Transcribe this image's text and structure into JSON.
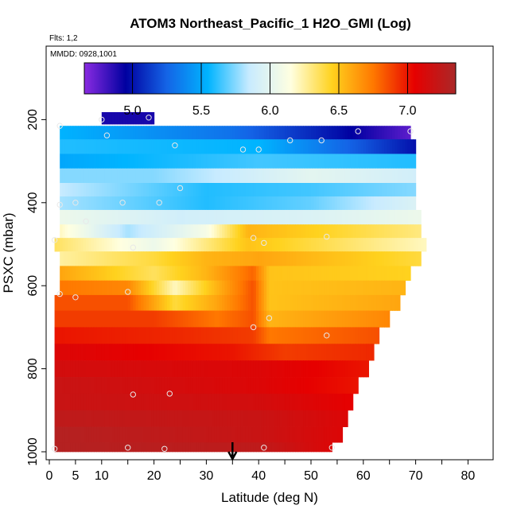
{
  "chart_data": {
    "type": "heatmap",
    "title": "ATOM3 Northeast_Pacific_1 H2O_GMI (Log)",
    "flights_note": "Flts: 1,2",
    "date_note": "MMDD: 0928,1001",
    "xlabel": "Latitude (deg N)",
    "ylabel": "PSXC (mbar)",
    "xlim": [
      0,
      85
    ],
    "ylim": [
      1000,
      0
    ],
    "x_ticks": [
      0,
      5,
      10,
      20,
      30,
      40,
      50,
      60,
      70,
      80
    ],
    "x_minor_ticks": [
      15,
      25,
      35,
      45,
      55,
      65,
      75,
      85
    ],
    "y_ticks": [
      200,
      400,
      600,
      800,
      1000
    ],
    "colorbar": {
      "range": [
        4.65,
        7.35
      ],
      "ticks": [
        5.0,
        5.5,
        6.0,
        6.5,
        7.0
      ],
      "tick_labels": [
        "5.0",
        "5.5",
        "6.0",
        "6.5",
        "7.0"
      ],
      "colors": [
        "#8a2be2",
        "#0000a0",
        "#1464e6",
        "#00b4ff",
        "#c8ebff",
        "#ffffe0",
        "#ffd21e",
        "#ff7800",
        "#e60000",
        "#aa2828"
      ]
    },
    "profiles": [
      {
        "p": 200,
        "x0": 10,
        "x1": 20,
        "kind": "flat",
        "v": 4.9
      },
      {
        "p": 230,
        "x0": 2,
        "x1": 69,
        "kind": "piecewise",
        "pts": [
          [
            2,
            5.55
          ],
          [
            35,
            5.3
          ],
          [
            55,
            5.0
          ],
          [
            69,
            4.75
          ]
        ]
      },
      {
        "p": 265,
        "x0": 2,
        "x1": 70,
        "kind": "piecewise",
        "pts": [
          [
            2,
            5.6
          ],
          [
            40,
            5.55
          ],
          [
            60,
            5.2
          ],
          [
            70,
            5.0
          ]
        ]
      },
      {
        "p": 300,
        "x0": 2,
        "x1": 70,
        "kind": "piecewise",
        "pts": [
          [
            2,
            5.5
          ],
          [
            40,
            5.65
          ],
          [
            70,
            5.6
          ]
        ]
      },
      {
        "p": 335,
        "x0": 2,
        "x1": 70,
        "kind": "piecewise",
        "pts": [
          [
            2,
            5.75
          ],
          [
            20,
            5.75
          ],
          [
            50,
            6.0
          ],
          [
            70,
            5.9
          ]
        ]
      },
      {
        "p": 370,
        "x0": 2,
        "x1": 70,
        "kind": "piecewise",
        "pts": [
          [
            2,
            5.85
          ],
          [
            30,
            5.6
          ],
          [
            50,
            5.65
          ],
          [
            70,
            5.75
          ]
        ]
      },
      {
        "p": 400,
        "x0": 2,
        "x1": 70,
        "kind": "piecewise",
        "pts": [
          [
            2,
            5.8
          ],
          [
            30,
            5.6
          ],
          [
            50,
            5.7
          ],
          [
            70,
            5.95
          ]
        ]
      },
      {
        "p": 435,
        "x0": 2,
        "x1": 71,
        "kind": "piecewise",
        "pts": [
          [
            2,
            6.05
          ],
          [
            25,
            5.9
          ],
          [
            50,
            5.95
          ],
          [
            71,
            6.05
          ]
        ]
      },
      {
        "p": 470,
        "x0": 2,
        "x1": 71,
        "kind": "piecewise",
        "pts": [
          [
            2,
            6.2
          ],
          [
            15,
            5.8
          ],
          [
            30,
            6.1
          ],
          [
            38,
            6.55
          ],
          [
            71,
            6.3
          ]
        ]
      },
      {
        "p": 500,
        "x0": 1,
        "x1": 72,
        "kind": "piecewise",
        "pts": [
          [
            1,
            6.35
          ],
          [
            20,
            6.05
          ],
          [
            30,
            6.3
          ],
          [
            38,
            6.5
          ],
          [
            72,
            6.2
          ]
        ]
      },
      {
        "p": 535,
        "x0": 2,
        "x1": 71,
        "kind": "piecewise",
        "pts": [
          [
            2,
            6.25
          ],
          [
            20,
            6.4
          ],
          [
            30,
            6.55
          ],
          [
            40,
            6.6
          ],
          [
            71,
            6.4
          ]
        ]
      },
      {
        "p": 570,
        "x0": 2,
        "x1": 69,
        "kind": "piecewise",
        "pts": [
          [
            2,
            6.6
          ],
          [
            20,
            6.35
          ],
          [
            30,
            6.55
          ],
          [
            39,
            6.8
          ],
          [
            42,
            6.5
          ],
          [
            69,
            6.45
          ]
        ]
      },
      {
        "p": 605,
        "x0": 2,
        "x1": 68,
        "kind": "piecewise",
        "pts": [
          [
            2,
            6.75
          ],
          [
            15,
            6.7
          ],
          [
            24,
            6.2
          ],
          [
            32,
            6.55
          ],
          [
            39,
            6.85
          ],
          [
            42,
            6.5
          ],
          [
            68,
            6.55
          ]
        ]
      },
      {
        "p": 640,
        "x0": 1,
        "x1": 67,
        "kind": "piecewise",
        "pts": [
          [
            1,
            6.85
          ],
          [
            15,
            6.85
          ],
          [
            24,
            6.4
          ],
          [
            32,
            6.6
          ],
          [
            39,
            6.85
          ],
          [
            42,
            6.5
          ],
          [
            67,
            6.6
          ]
        ]
      },
      {
        "p": 680,
        "x0": 1,
        "x1": 65,
        "kind": "piecewise",
        "pts": [
          [
            1,
            6.9
          ],
          [
            20,
            6.9
          ],
          [
            32,
            6.75
          ],
          [
            39,
            6.85
          ],
          [
            42,
            6.55
          ],
          [
            65,
            6.7
          ]
        ]
      },
      {
        "p": 720,
        "x0": 1,
        "x1": 63,
        "kind": "piecewise",
        "pts": [
          [
            1,
            7.0
          ],
          [
            25,
            6.95
          ],
          [
            39,
            6.9
          ],
          [
            42,
            6.75
          ],
          [
            63,
            6.85
          ]
        ]
      },
      {
        "p": 760,
        "x0": 1,
        "x1": 62,
        "kind": "piecewise",
        "pts": [
          [
            1,
            7.1
          ],
          [
            35,
            7.0
          ],
          [
            45,
            6.9
          ],
          [
            62,
            6.95
          ]
        ]
      },
      {
        "p": 800,
        "x0": 1,
        "x1": 61,
        "kind": "piecewise",
        "pts": [
          [
            1,
            7.15
          ],
          [
            40,
            7.1
          ],
          [
            61,
            7.0
          ]
        ]
      },
      {
        "p": 840,
        "x0": 1,
        "x1": 59,
        "kind": "piecewise",
        "pts": [
          [
            1,
            7.2
          ],
          [
            40,
            7.1
          ],
          [
            59,
            7.0
          ]
        ]
      },
      {
        "p": 880,
        "x0": 1,
        "x1": 58,
        "kind": "piecewise",
        "pts": [
          [
            1,
            7.2
          ],
          [
            40,
            7.15
          ],
          [
            58,
            7.05
          ]
        ]
      },
      {
        "p": 920,
        "x0": 1,
        "x1": 57,
        "kind": "piecewise",
        "pts": [
          [
            1,
            7.25
          ],
          [
            40,
            7.2
          ],
          [
            57,
            7.1
          ]
        ]
      },
      {
        "p": 960,
        "x0": 1,
        "x1": 56,
        "kind": "piecewise",
        "pts": [
          [
            1,
            7.3
          ],
          [
            40,
            7.2
          ],
          [
            56,
            7.1
          ]
        ]
      },
      {
        "p": 995,
        "x0": 1,
        "x1": 54,
        "kind": "piecewise",
        "pts": [
          [
            1,
            7.3
          ],
          [
            40,
            7.25
          ],
          [
            54,
            7.1
          ]
        ]
      }
    ],
    "sample_points": [
      [
        2,
        215
      ],
      [
        10,
        200
      ],
      [
        19,
        195
      ],
      [
        11,
        238
      ],
      [
        59,
        228
      ],
      [
        69,
        228
      ],
      [
        24,
        262
      ],
      [
        37,
        272
      ],
      [
        40,
        272
      ],
      [
        46,
        250
      ],
      [
        52,
        250
      ],
      [
        25,
        365
      ],
      [
        2,
        405
      ],
      [
        5,
        400
      ],
      [
        14,
        400
      ],
      [
        21,
        400
      ],
      [
        7,
        445
      ],
      [
        1,
        490
      ],
      [
        16,
        508
      ],
      [
        39,
        485
      ],
      [
        41,
        497
      ],
      [
        53,
        482
      ],
      [
        2,
        620
      ],
      [
        5,
        628
      ],
      [
        15,
        615
      ],
      [
        42,
        678
      ],
      [
        39,
        700
      ],
      [
        53,
        720
      ],
      [
        16,
        862
      ],
      [
        23,
        860
      ],
      [
        1,
        993
      ],
      [
        15,
        990
      ],
      [
        22,
        993
      ],
      [
        41,
        990
      ],
      [
        54,
        990
      ]
    ],
    "marker_arrow_x": 35
  }
}
